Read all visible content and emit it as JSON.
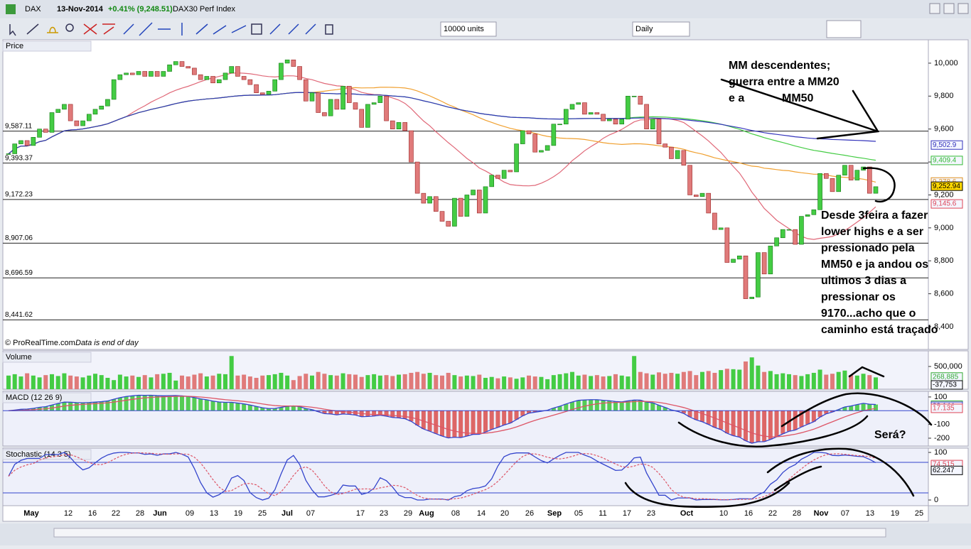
{
  "window": {
    "symbol": "DAX",
    "date": "13-Nov-2014",
    "change": "+0.41% (9,248.51)",
    "name": "DAX30 Perf Index"
  },
  "toolbar": {
    "units": "10000 units",
    "period": "Daily"
  },
  "footer": {
    "copyright": "© ProRealTime.com",
    "note": "Data is end of day"
  },
  "x_labels": [
    "May",
    "12",
    "16",
    "22",
    "28",
    "Jun",
    "09",
    "13",
    "19",
    "25",
    "Jul",
    "07",
    "17",
    "23",
    "29",
    "Aug",
    "08",
    "14",
    "20",
    "26",
    "Sep",
    "05",
    "11",
    "17",
    "23",
    "Oct",
    "10",
    "16",
    "22",
    "28",
    "Nov",
    "07",
    "13",
    "19",
    "25"
  ],
  "annotations": {
    "top": [
      "MM descendentes;",
      "guerra entre a MM20",
      "e a",
      "MM50"
    ],
    "right": [
      "Desde 3feira a fazer",
      "lower highs e a ser",
      "pressionado pela",
      "MM50 e ja andou os",
      "ultimos 3 dias a",
      "pressionar os",
      "9170...acho que o",
      "caminho está traçado"
    ],
    "question": "Será?"
  },
  "chart_data": [
    {
      "type": "candlestick",
      "title": "Price",
      "values": [
        9450,
        9510,
        9530,
        9500,
        9550,
        9600,
        9580,
        9700,
        9720,
        9750,
        9650,
        9620,
        9650,
        9690,
        9720,
        9740,
        9780,
        9900,
        9930,
        9940,
        9930,
        9950,
        9920,
        9950,
        9920,
        9950,
        9990,
        10010,
        9980,
        9970,
        9930,
        9900,
        9920,
        9880,
        9900,
        9940,
        9980,
        9920,
        9900,
        9870,
        9820,
        9810,
        9830,
        9900,
        10000,
        10020,
        9980,
        9900,
        9770,
        9820,
        9700,
        9680,
        9780,
        9720,
        9860,
        9760,
        9720,
        9610,
        9750,
        9760,
        9800,
        9650,
        9600,
        9640,
        9590,
        9400,
        9210,
        9150,
        9190,
        9100,
        9040,
        9010,
        9180,
        9070,
        9200,
        9230,
        9090,
        9250,
        9320,
        9300,
        9350,
        9340,
        9510,
        9590,
        9570,
        9460,
        9470,
        9500,
        9630,
        9630,
        9720,
        9750,
        9760,
        9690,
        9700,
        9690,
        9650,
        9660,
        9630,
        9660,
        9800,
        9800,
        9750,
        9600,
        9660,
        9510,
        9490,
        9420,
        9470,
        9380,
        9200,
        9190,
        9210,
        9090,
        8990,
        9000,
        8790,
        8810,
        8830,
        8570,
        8580,
        8850,
        8720,
        8890,
        8940,
        8990,
        8990,
        8900,
        9070,
        9080,
        9110,
        9330,
        9300,
        9220,
        9320,
        9380,
        9290,
        9350,
        9370,
        9210,
        9250
      ],
      "up_color": "#44cc44",
      "down_color": "#e07a7a",
      "ylim": [
        8262,
        10142
      ],
      "yticks": [
        {
          "value": 8400,
          "label": "8,400"
        },
        {
          "value": 8600,
          "label": "8,600"
        },
        {
          "value": 8800,
          "label": "8,800"
        },
        {
          "value": 9000,
          "label": "9,000"
        },
        {
          "value": 9200,
          "label": "9,200"
        },
        {
          "value": 9400,
          "label": "9,400"
        },
        {
          "value": 9600,
          "label": "9,600"
        },
        {
          "value": 9800,
          "label": "9,800"
        },
        {
          "value": 10000,
          "label": "10,000"
        }
      ],
      "levels": [
        {
          "value": 9587.11,
          "label": "9,587.11"
        },
        {
          "value": 9393.37,
          "label": "9,393.37"
        },
        {
          "value": 9172.23,
          "label": "9,172.23"
        },
        {
          "value": 8907.06,
          "label": "8,907.06"
        },
        {
          "value": 8696.59,
          "label": "8,696.59"
        },
        {
          "value": 8441.62,
          "label": "8,441.62"
        }
      ],
      "moving_averages": [
        {
          "period": 20,
          "color": "#e06878"
        },
        {
          "period": 50,
          "color": "#f0a030"
        },
        {
          "period": 100,
          "color": "#44cc44"
        },
        {
          "period": 200,
          "color": "#3333bb"
        }
      ],
      "tags": [
        {
          "value": 9502.9,
          "label": "9,502.9",
          "color": "#3333bb"
        },
        {
          "value": 9409.4,
          "label": "9,409.4",
          "color": "#33bb33"
        },
        {
          "value": 9278.6,
          "label": "9,278.6",
          "color": "#e09020"
        },
        {
          "value": 9252.94,
          "label": "9,252.94",
          "color": "#000000"
        },
        {
          "value": 9145.6,
          "label": "9,145.6",
          "color": "#dd4455"
        }
      ]
    },
    {
      "type": "bar",
      "title": "Volume",
      "values": [
        300000,
        330000,
        280000,
        350000,
        300000,
        260000,
        310000,
        330000,
        290000,
        350000,
        300000,
        280000,
        260000,
        300000,
        340000,
        310000,
        250000,
        200000,
        320000,
        280000,
        300000,
        270000,
        310000,
        260000,
        330000,
        340000,
        360000,
        190000,
        300000,
        280000,
        320000,
        350000,
        280000,
        300000,
        340000,
        330000,
        730000,
        300000,
        320000,
        280000,
        250000,
        300000,
        310000,
        330000,
        360000,
        300000,
        200000,
        290000,
        340000,
        300000,
        380000,
        340000,
        310000,
        300000,
        350000,
        330000,
        320000,
        270000,
        310000,
        330000,
        300000,
        310000,
        290000,
        320000,
        330000,
        360000,
        380000,
        340000,
        360000,
        310000,
        300000,
        360000,
        310000,
        280000,
        300000,
        290000,
        320000,
        250000,
        270000,
        240000,
        280000,
        260000,
        230000,
        260000,
        300000,
        280000,
        270000,
        220000,
        310000,
        330000,
        350000,
        380000,
        300000,
        320000,
        290000,
        310000,
        280000,
        290000,
        330000,
        300000,
        280000,
        730000,
        380000,
        350000,
        320000,
        370000,
        340000,
        360000,
        340000,
        380000,
        400000,
        310000,
        380000,
        400000,
        360000,
        420000,
        450000,
        440000,
        430000,
        610000,
        700000,
        520000,
        380000,
        400000,
        330000,
        350000,
        330000,
        310000,
        290000,
        330000,
        360000,
        430000,
        320000,
        340000,
        380000,
        410000,
        310000,
        300000,
        340000,
        310000,
        260000
      ],
      "ylim": [
        0,
        843750
      ],
      "yticks": [
        {
          "value": 500000,
          "label": "500,000"
        }
      ],
      "tags": [
        {
          "value": 268885,
          "label": "268,885",
          "color": "#33aa33"
        },
        {
          "value": -37753,
          "label": "-37,753",
          "color": "#000000"
        }
      ]
    },
    {
      "type": "macd",
      "title": "MACD (12 26 9)",
      "params": [
        12,
        26,
        9
      ],
      "ylim": [
        -257,
        141
      ],
      "yticks": [
        -200,
        -100,
        100
      ],
      "tags": [
        {
          "value": 40.278,
          "label": "40.278",
          "color": "#33aa33"
        },
        {
          "value": 32.144,
          "label": "32.144",
          "color": "#3333bb"
        },
        {
          "value": 17.135,
          "label": "17.135",
          "color": "#dd4455"
        }
      ]
    },
    {
      "type": "stochastic",
      "title": "Stochastic (14 3 5)",
      "params": [
        14,
        3,
        5
      ],
      "ylim": [
        -11.9,
        109
      ],
      "yticks": [
        0,
        100
      ],
      "tags": [
        {
          "value": 74.515,
          "label": "74.515",
          "color": "#dd4455"
        },
        {
          "value": 62.247,
          "label": "62.247",
          "color": "#000000"
        }
      ]
    }
  ]
}
